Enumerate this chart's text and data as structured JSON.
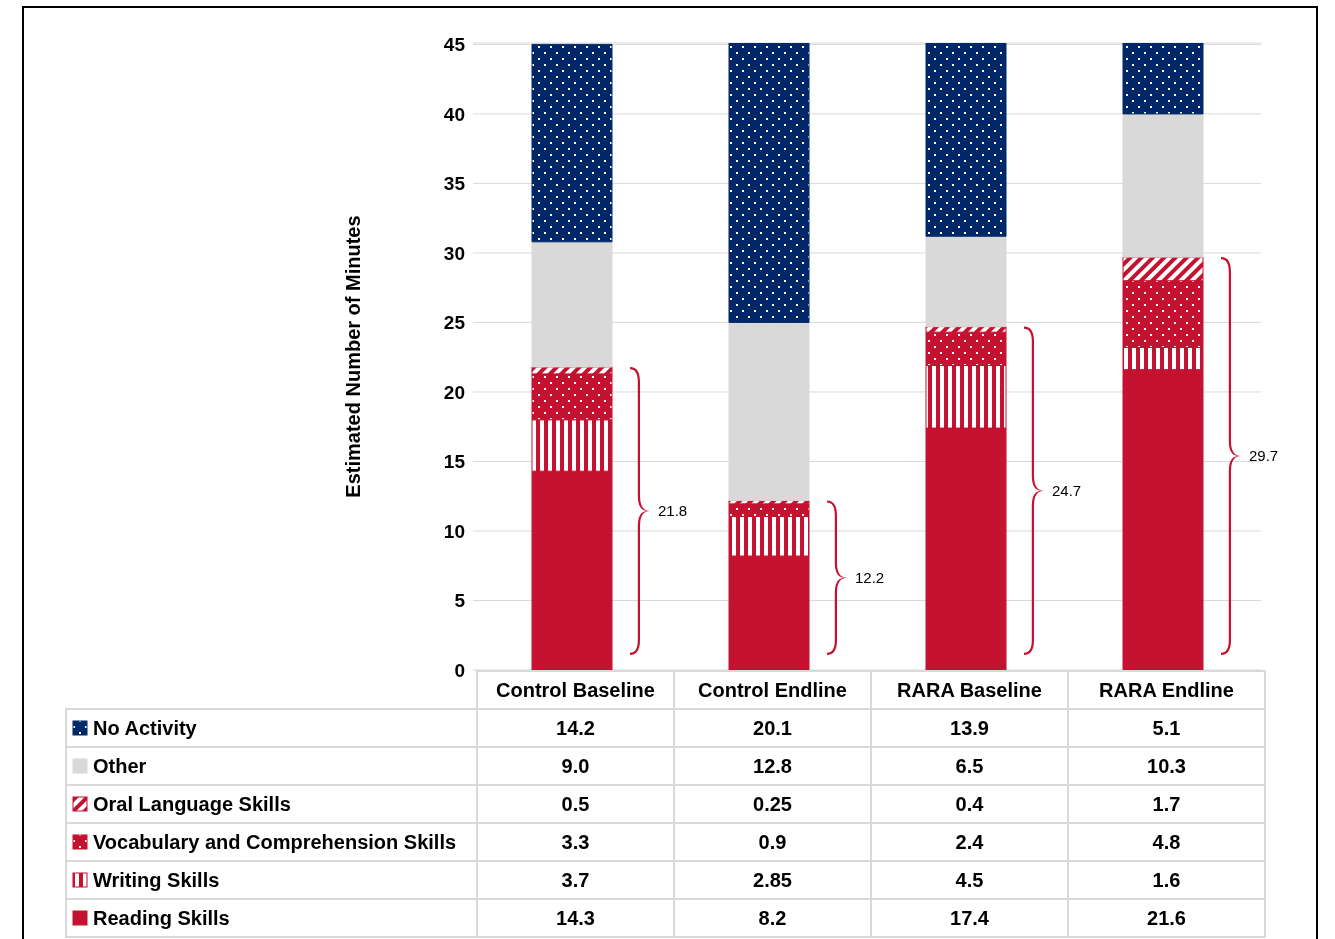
{
  "chart_data": {
    "type": "bar",
    "stacked": true,
    "ylabel": "Estimated Number of Minutes",
    "categories": [
      "Control Baseline",
      "Control Endline",
      "RARA Baseline",
      "RARA Endline"
    ],
    "ylim": [
      0,
      45.1
    ],
    "yticks": [
      0,
      5,
      10,
      15,
      20,
      25,
      30,
      35,
      40,
      45
    ],
    "grid": "y",
    "legend": "bottom",
    "data_labels": true,
    "series": [
      {
        "name": "Reading Skills",
        "color": "#c41230",
        "values": [
          14.3,
          8.2,
          17.4,
          21.6
        ]
      },
      {
        "name": "Writing Skills",
        "color": "#c41230",
        "values": [
          3.7,
          2.85,
          4.5,
          1.6
        ]
      },
      {
        "name": "Vocabulary and Comprehension Skills",
        "color": "#c41230",
        "values": [
          3.3,
          0.9,
          2.4,
          4.8
        ]
      },
      {
        "name": "Oral Language Skills",
        "color": "#c41230",
        "values": [
          0.5,
          0.25,
          0.4,
          1.7
        ]
      },
      {
        "name": "Other",
        "color": "#d9d9d9",
        "values": [
          9.0,
          12.8,
          6.5,
          10.3
        ],
        "value_labels": [
          "9.0",
          "12.8",
          "6.5",
          "10.3"
        ]
      },
      {
        "name": "No Activity",
        "color": "#002868",
        "values": [
          14.2,
          20.1,
          13.9,
          5.1
        ]
      }
    ],
    "annotations": [
      "21.8",
      "12.2",
      "24.7",
      "29.7"
    ]
  }
}
